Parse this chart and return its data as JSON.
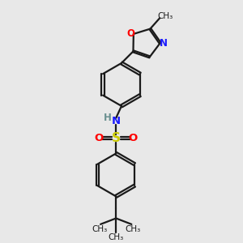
{
  "background_color": "#e8e8e8",
  "bond_color": "#1a1a1a",
  "line_width": 1.6,
  "colors": {
    "N": "#1a1aff",
    "O": "#ff0000",
    "S": "#cccc00",
    "C": "#1a1a1a",
    "H": "#6a9090"
  },
  "xlim": [
    0,
    10
  ],
  "ylim": [
    0,
    10
  ]
}
